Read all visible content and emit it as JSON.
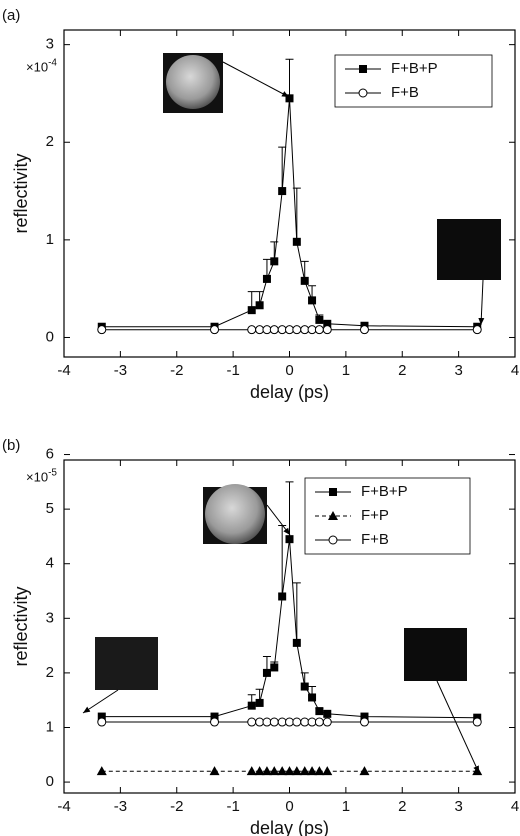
{
  "chart_data": [
    {
      "type": "line",
      "panel_label": "(a)",
      "x_label": "delay (ps)",
      "y_label": "reflectivity",
      "y_scale_base": "×10",
      "y_scale_exponent": "-4",
      "xlim": [
        -4,
        4
      ],
      "xticks": [
        -4,
        -3,
        -2,
        -1,
        0,
        1,
        2,
        3,
        4
      ],
      "ylim": [
        -0.2,
        3.15
      ],
      "yticks": [
        0,
        1,
        2,
        3
      ],
      "legend": "upper right",
      "x": [
        -3.33,
        -1.33,
        -0.67,
        -0.53,
        -0.4,
        -0.27,
        -0.13,
        0,
        0.13,
        0.27,
        0.4,
        0.53,
        0.67,
        1.33,
        3.33
      ],
      "series": [
        {
          "name": "F+B+P",
          "color": "#000000",
          "marker": "square",
          "dashed": false,
          "values": [
            0.11,
            0.11,
            0.28,
            0.33,
            0.6,
            0.78,
            1.5,
            2.45,
            0.98,
            0.58,
            0.38,
            0.18,
            0.14,
            0.12,
            0.11
          ],
          "errors": [
            0,
            0,
            0.19,
            0.14,
            0.2,
            0.2,
            0.45,
            0.4,
            0.55,
            0.2,
            0.15,
            0.05,
            0,
            0,
            0
          ]
        },
        {
          "name": "F+B",
          "color": "#000000",
          "marker": "circle",
          "dashed": false,
          "values": [
            0.08,
            0.08,
            0.08,
            0.08,
            0.08,
            0.08,
            0.08,
            0.08,
            0.08,
            0.08,
            0.08,
            0.08,
            0.08,
            0.08,
            0.08
          ]
        }
      ]
    },
    {
      "type": "line",
      "panel_label": "(b)",
      "x_label": "delay (ps)",
      "y_label": "reflectivity",
      "y_scale_base": "×10",
      "y_scale_exponent": "-5",
      "xlim": [
        -4,
        4
      ],
      "xticks": [
        -4,
        -3,
        -2,
        -1,
        0,
        1,
        2,
        3,
        4
      ],
      "ylim": [
        -0.2,
        5.9
      ],
      "yticks": [
        0,
        1,
        2,
        3,
        4,
        5,
        6
      ],
      "legend": "upper right",
      "x": [
        -3.33,
        -1.33,
        -0.67,
        -0.53,
        -0.4,
        -0.27,
        -0.13,
        0,
        0.13,
        0.27,
        0.4,
        0.53,
        0.67,
        1.33,
        3.33
      ],
      "series": [
        {
          "name": "F+B+P",
          "color": "#000000",
          "marker": "square",
          "dashed": false,
          "values": [
            1.2,
            1.2,
            1.4,
            1.45,
            2.0,
            2.1,
            3.4,
            4.45,
            2.55,
            1.75,
            1.55,
            1.3,
            1.25,
            1.2,
            1.18
          ],
          "errors": [
            0,
            0,
            0.2,
            0.25,
            0.3,
            0.1,
            1.3,
            1.05,
            1.1,
            0.25,
            0.2,
            0.05,
            0,
            0,
            0
          ]
        },
        {
          "name": "F+P",
          "color": "#000000",
          "marker": "triangle",
          "dashed": true,
          "values": [
            0.2,
            0.2,
            0.2,
            0.2,
            0.2,
            0.2,
            0.2,
            0.2,
            0.2,
            0.2,
            0.2,
            0.2,
            0.2,
            0.2,
            0.2
          ]
        },
        {
          "name": "F+B",
          "color": "#000000",
          "marker": "circle",
          "dashed": false,
          "values": [
            1.1,
            1.1,
            1.1,
            1.1,
            1.1,
            1.1,
            1.1,
            1.1,
            1.1,
            1.1,
            1.1,
            1.1,
            1.1,
            1.1,
            1.1
          ]
        }
      ]
    }
  ]
}
